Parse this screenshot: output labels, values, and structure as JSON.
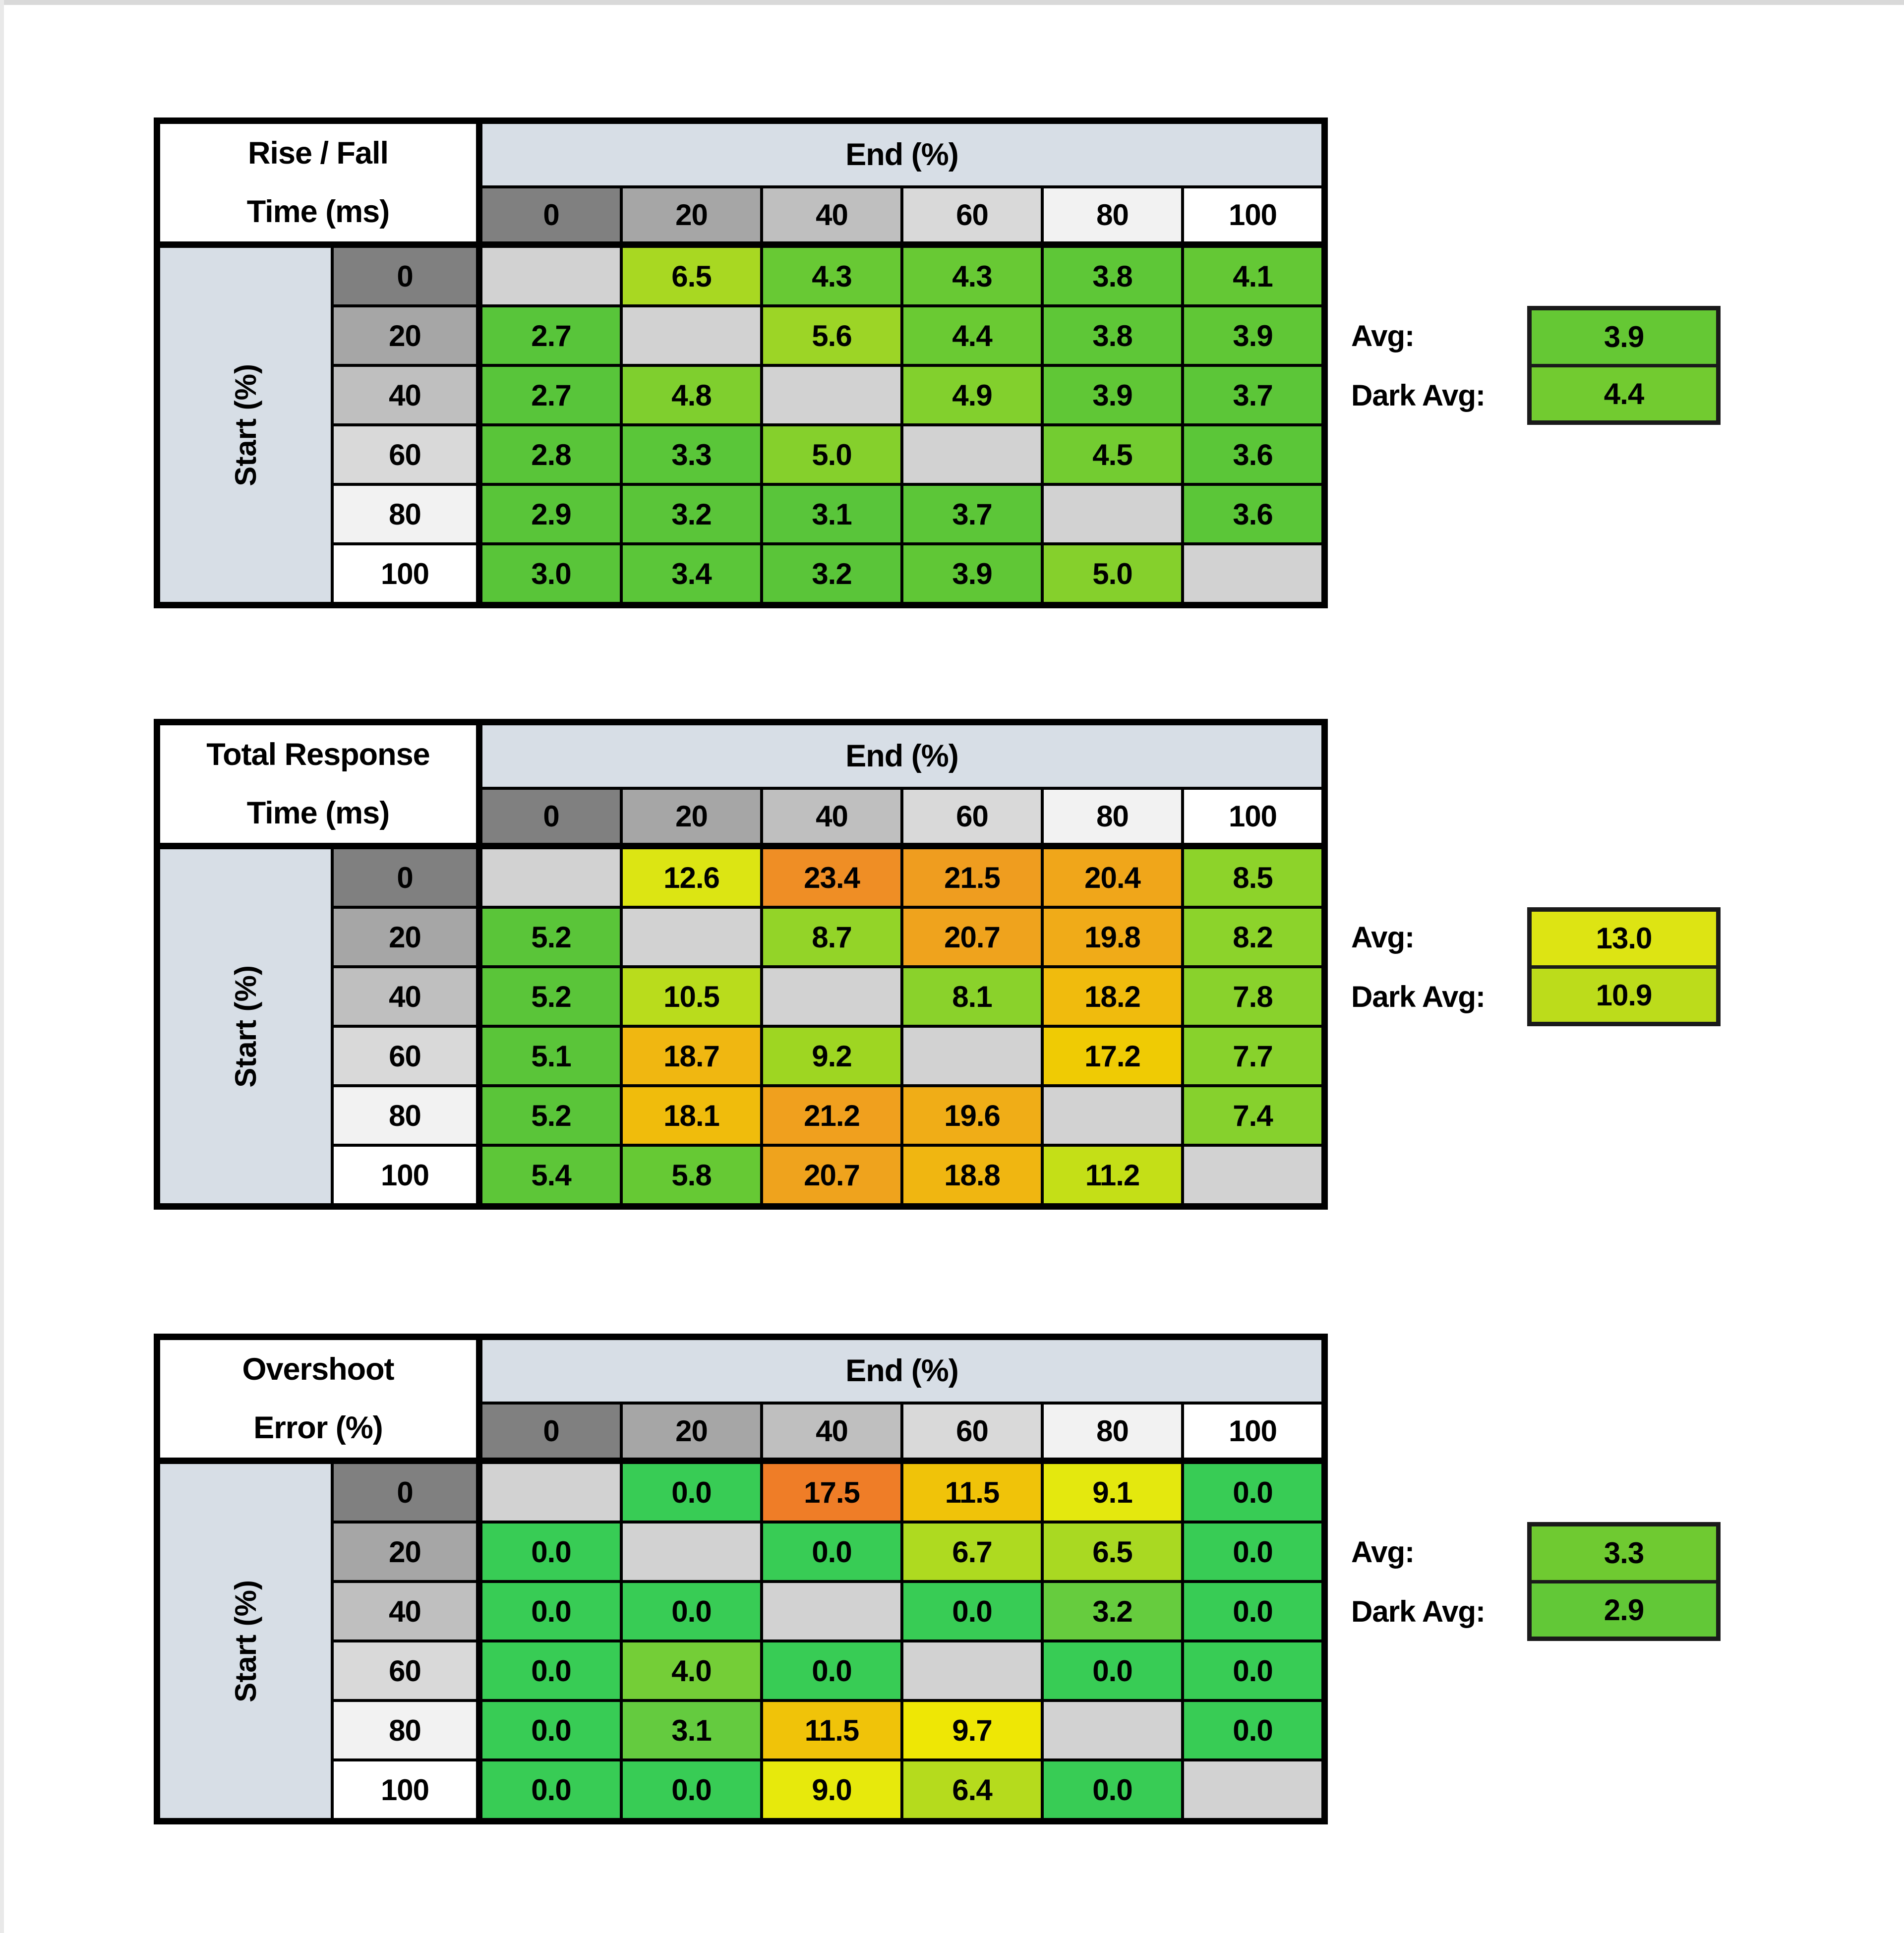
{
  "page": {
    "background": "#ffffff",
    "top_strip_color": "#d9d9d9"
  },
  "shared": {
    "col_group_label": "End (%)",
    "row_group_label": "Start (%)",
    "col_headers": [
      "0",
      "20",
      "40",
      "60",
      "80",
      "100"
    ],
    "row_headers": [
      "0",
      "20",
      "40",
      "60",
      "80",
      "100"
    ],
    "header_shades": [
      "#808080",
      "#a6a6a6",
      "#bfbfbf",
      "#d9d9d9",
      "#f2f2f2",
      "#ffffff"
    ],
    "empty_cell_color": "#d2d2d2",
    "band_color": "#d7dee6",
    "avg_label": "Avg:",
    "dark_avg_label": "Dark Avg:"
  },
  "chart_data": [
    {
      "type": "heatmap",
      "title_line1": "Rise / Fall",
      "title_line2": "Time (ms)",
      "x_axis_label": "End (%)",
      "y_axis_label": "Start (%)",
      "x_categories": [
        0,
        20,
        40,
        60,
        80,
        100
      ],
      "y_categories": [
        0,
        20,
        40,
        60,
        80,
        100
      ],
      "values": [
        [
          null,
          6.5,
          4.3,
          4.3,
          3.8,
          4.1
        ],
        [
          2.7,
          null,
          5.6,
          4.4,
          3.8,
          3.9
        ],
        [
          2.7,
          4.8,
          null,
          4.9,
          3.9,
          3.7
        ],
        [
          2.8,
          3.3,
          5.0,
          null,
          4.5,
          3.6
        ],
        [
          2.9,
          3.2,
          3.1,
          3.7,
          null,
          3.6
        ],
        [
          3.0,
          3.4,
          3.2,
          3.9,
          5.0,
          null
        ]
      ],
      "cell_colors": [
        [
          null,
          "#a8d822",
          "#68c934",
          "#68c934",
          "#5ec737",
          "#64c835"
        ],
        [
          "#58c53a",
          null,
          "#9cd526",
          "#6aca33",
          "#5ec737",
          "#60c736"
        ],
        [
          "#58c53a",
          "#7fcf2e",
          null,
          "#82d02d",
          "#60c736",
          "#5cc638"
        ],
        [
          "#59c539",
          "#5ac639",
          "#85d02c",
          null,
          "#73cc31",
          "#5bc638"
        ],
        [
          "#59c539",
          "#5ac539",
          "#59c53a",
          "#5cc638",
          null,
          "#5bc638"
        ],
        [
          "#59c539",
          "#5bc639",
          "#5ac539",
          "#60c736",
          "#85d02c",
          null
        ]
      ],
      "avg_value": "3.9",
      "avg_color": "#65c834",
      "dark_avg_value": "4.4",
      "dark_avg_color": "#72cb30"
    },
    {
      "type": "heatmap",
      "title_line1": "Total Response",
      "title_line2": "Time (ms)",
      "x_axis_label": "End (%)",
      "y_axis_label": "Start (%)",
      "x_categories": [
        0,
        20,
        40,
        60,
        80,
        100
      ],
      "y_categories": [
        0,
        20,
        40,
        60,
        80,
        100
      ],
      "values": [
        [
          null,
          12.6,
          23.4,
          21.5,
          20.4,
          8.5
        ],
        [
          5.2,
          null,
          8.7,
          20.7,
          19.8,
          8.2
        ],
        [
          5.2,
          10.5,
          null,
          8.1,
          18.2,
          7.8
        ],
        [
          5.1,
          18.7,
          9.2,
          null,
          17.2,
          7.7
        ],
        [
          5.2,
          18.1,
          21.2,
          19.6,
          null,
          7.4
        ],
        [
          5.4,
          5.8,
          20.7,
          18.8,
          11.2,
          null
        ]
      ],
      "cell_colors": [
        [
          null,
          "#dce513",
          "#ef8e25",
          "#ef9d1f",
          "#f0a61a",
          "#8dd32a"
        ],
        [
          "#5ac539",
          null,
          "#93d428",
          "#efa31d",
          "#f0ab18",
          "#8cd32b"
        ],
        [
          "#5ac539",
          "#b9dc1c",
          null,
          "#8ad22b",
          "#f0bb0d",
          "#89d22c"
        ],
        [
          "#5ac539",
          "#f0b711",
          "#9ed622",
          null,
          "#efcb04",
          "#88d22c"
        ],
        [
          "#5ac539",
          "#f0bc0c",
          "#f0a01e",
          "#f0ad17",
          null,
          "#86d12d"
        ],
        [
          "#5dc638",
          "#66c934",
          "#efa31d",
          "#f0b611",
          "#c4df17",
          null
        ]
      ],
      "avg_value": "13.0",
      "avg_color": "#dde413",
      "dark_avg_value": "10.9",
      "dark_avg_color": "#bcdc1b"
    },
    {
      "type": "heatmap",
      "title_line1": "Overshoot",
      "title_line2": "Error (%)",
      "x_axis_label": "End (%)",
      "y_axis_label": "Start (%)",
      "x_categories": [
        0,
        20,
        40,
        60,
        80,
        100
      ],
      "y_categories": [
        0,
        20,
        40,
        60,
        80,
        100
      ],
      "values": [
        [
          null,
          0.0,
          17.5,
          11.5,
          9.1,
          0.0
        ],
        [
          0.0,
          null,
          0.0,
          6.7,
          6.5,
          0.0
        ],
        [
          0.0,
          0.0,
          null,
          0.0,
          3.2,
          0.0
        ],
        [
          0.0,
          4.0,
          0.0,
          null,
          0.0,
          0.0
        ],
        [
          0.0,
          3.1,
          11.5,
          9.7,
          null,
          0.0
        ],
        [
          0.0,
          0.0,
          9.0,
          6.4,
          0.0,
          null
        ]
      ],
      "cell_colors": [
        [
          null,
          "#38cc55",
          "#ef7d27",
          "#f0c309",
          "#e4e80e",
          "#38cc55"
        ],
        [
          "#38cc55",
          null,
          "#38cc55",
          "#aeda20",
          "#a9d922",
          "#38cc55"
        ],
        [
          "#38cc55",
          "#38cc55",
          null,
          "#38cc55",
          "#66cc3e",
          "#38cc55"
        ],
        [
          "#38cc55",
          "#74ce37",
          "#38cc55",
          null,
          "#38cc55",
          "#38cc55"
        ],
        [
          "#38cc55",
          "#64cb3f",
          "#f0c309",
          "#eee705",
          null,
          "#38cc55"
        ],
        [
          "#38cc55",
          "#38cc55",
          "#e7e90c",
          "#b5db1d",
          "#38cc55",
          null
        ]
      ],
      "avg_value": "3.3",
      "avg_color": "#6fca31",
      "dark_avg_value": "2.9",
      "dark_avg_color": "#62c837"
    }
  ]
}
